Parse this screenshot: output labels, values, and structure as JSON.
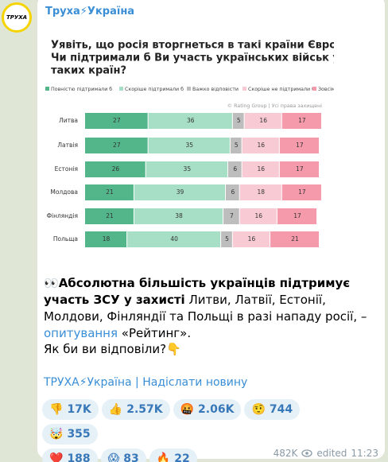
{
  "post": {
    "channel": "Труха⚡Україна",
    "avatar_label": "ТРУХА",
    "text_bold": "Абсолютна більшість українців підтримує участь ЗСУ у захисті",
    "text_plain": " Литви, Латвії, Естонії, Молдови, Фінляндії та Польщі в разі нападу росії, – ",
    "text_link": "опитування",
    "text_end": " «Рейтинг».",
    "text_emoji": "👀",
    "question": "Як би ви відповіли?👇",
    "footer_link": "ТРУХА⚡Україна | Надіслати новину",
    "reactions": [
      {
        "emoji": "👎",
        "count": "17K"
      },
      {
        "emoji": "👍",
        "count": "2.57K"
      },
      {
        "emoji": "🤬",
        "count": "2.06K"
      },
      {
        "emoji": "🤨",
        "count": "744"
      },
      {
        "emoji": "🤯",
        "count": "355"
      },
      {
        "emoji": "❤️",
        "count": "188"
      },
      {
        "emoji": "😱",
        "count": "83"
      },
      {
        "emoji": "🔥",
        "count": "22"
      }
    ],
    "views": "482K",
    "edited": "edited",
    "time": "11:23"
  },
  "chart_data": {
    "type": "bar",
    "orientation": "horizontal",
    "stacked": true,
    "title": [
      "Уявіть, що росія вторгнеться в такі країни Європи.",
      "Чи підтримали б Ви участь українських військ у захисті",
      "таких країн?"
    ],
    "source": "© Rating Group | Усі права захищені",
    "categories": [
      "Литва",
      "Латвія",
      "Естонія",
      "Молдова",
      "Фінляндія",
      "Польща"
    ],
    "series": [
      {
        "name": "Повністю підтримали б",
        "color": "#52b68a",
        "values": [
          27,
          27,
          26,
          21,
          21,
          18
        ]
      },
      {
        "name": "Скоріше підтримали б",
        "color": "#a7dfc6",
        "values": [
          36,
          35,
          35,
          39,
          38,
          40
        ]
      },
      {
        "name": "Важко відповісти",
        "color": "#bdbdbd",
        "values": [
          5,
          5,
          6,
          6,
          7,
          5
        ]
      },
      {
        "name": "Скоріше не підтримали б",
        "color": "#f8cbd4",
        "values": [
          16,
          16,
          16,
          18,
          16,
          16
        ]
      },
      {
        "name": "Зовсім не підтримали б",
        "color": "#f59aab",
        "values": [
          17,
          17,
          17,
          17,
          17,
          21
        ]
      }
    ]
  }
}
